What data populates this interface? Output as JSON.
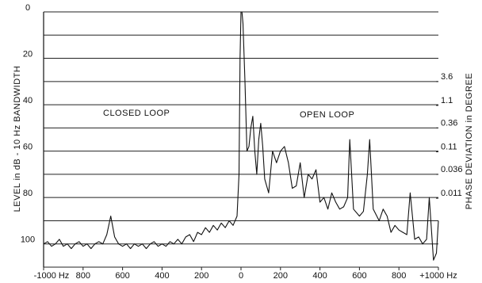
{
  "chart_data": {
    "type": "line",
    "y_title": "LEVEL in dB - 10 Hz BANDWIDTH",
    "y2_title": "PHASE DEVIATION in DEGREE",
    "annotations": [
      "CLOSED LOOP",
      "OPEN LOOP"
    ],
    "color": "#111111",
    "x": [
      -1000,
      -980,
      -960,
      -940,
      -920,
      -900,
      -880,
      -860,
      -840,
      -820,
      -800,
      -780,
      -760,
      -740,
      -720,
      -700,
      -680,
      -660,
      -640,
      -620,
      -600,
      -580,
      -560,
      -540,
      -520,
      -500,
      -480,
      -460,
      -440,
      -420,
      -400,
      -380,
      -360,
      -340,
      -320,
      -300,
      -280,
      -260,
      -240,
      -220,
      -200,
      -180,
      -160,
      -140,
      -120,
      -100,
      -80,
      -60,
      -40,
      -20,
      -10,
      -5,
      0,
      5,
      10,
      20,
      30,
      40,
      50,
      60,
      70,
      80,
      90,
      100,
      110,
      120,
      140,
      160,
      180,
      200,
      220,
      240,
      260,
      280,
      300,
      320,
      340,
      360,
      380,
      400,
      420,
      440,
      460,
      480,
      500,
      520,
      540,
      551,
      570,
      600,
      620,
      640,
      652,
      670,
      700,
      720,
      740,
      760,
      780,
      800,
      820,
      840,
      857,
      880,
      900,
      920,
      940,
      954,
      975,
      990,
      1000
    ],
    "values": [
      100,
      99,
      101,
      100,
      98,
      101,
      100,
      102,
      100,
      99,
      101,
      100,
      102,
      100,
      99,
      100,
      96,
      88,
      97,
      100,
      101,
      100,
      102,
      100,
      101,
      100,
      102,
      100,
      99,
      101,
      100,
      101,
      99,
      100,
      98,
      100,
      97,
      96,
      99,
      95,
      96,
      93,
      95,
      92,
      94,
      91,
      93,
      90,
      92,
      88,
      70,
      20,
      0,
      0,
      5,
      30,
      60,
      58,
      50,
      45,
      60,
      70,
      55,
      48,
      58,
      72,
      78,
      60,
      65,
      60,
      58,
      65,
      76,
      75,
      65,
      80,
      70,
      72,
      68,
      82,
      80,
      85,
      78,
      82,
      85,
      84,
      80,
      55,
      85,
      88,
      86,
      70,
      55,
      85,
      90,
      85,
      88,
      95,
      92,
      94,
      95,
      96,
      78,
      98,
      97,
      100,
      98,
      80,
      107,
      104,
      90
    ],
    "xlim": [
      -1000,
      1000
    ],
    "xticks": [
      {
        "value": -1000,
        "label": "-1000 Hz"
      },
      {
        "value": -800,
        "label": "800"
      },
      {
        "value": -600,
        "label": "600"
      },
      {
        "value": -400,
        "label": "400"
      },
      {
        "value": -200,
        "label": "200"
      },
      0,
      200,
      400,
      600,
      800,
      {
        "value": 1000,
        "label": "+1000 Hz"
      }
    ],
    "ylim": [
      0,
      110
    ],
    "y_inverted": true,
    "yticks": [
      0,
      20,
      40,
      60,
      80,
      100
    ],
    "ygrid": [
      0,
      10,
      20,
      30,
      40,
      50,
      60,
      70,
      80,
      90,
      100,
      110
    ],
    "y2lim": [
      0.00036,
      114
    ],
    "y2_log": true,
    "y2ticks": [
      3.6,
      1.1,
      0.36,
      0.11,
      0.036,
      0.011
    ]
  }
}
